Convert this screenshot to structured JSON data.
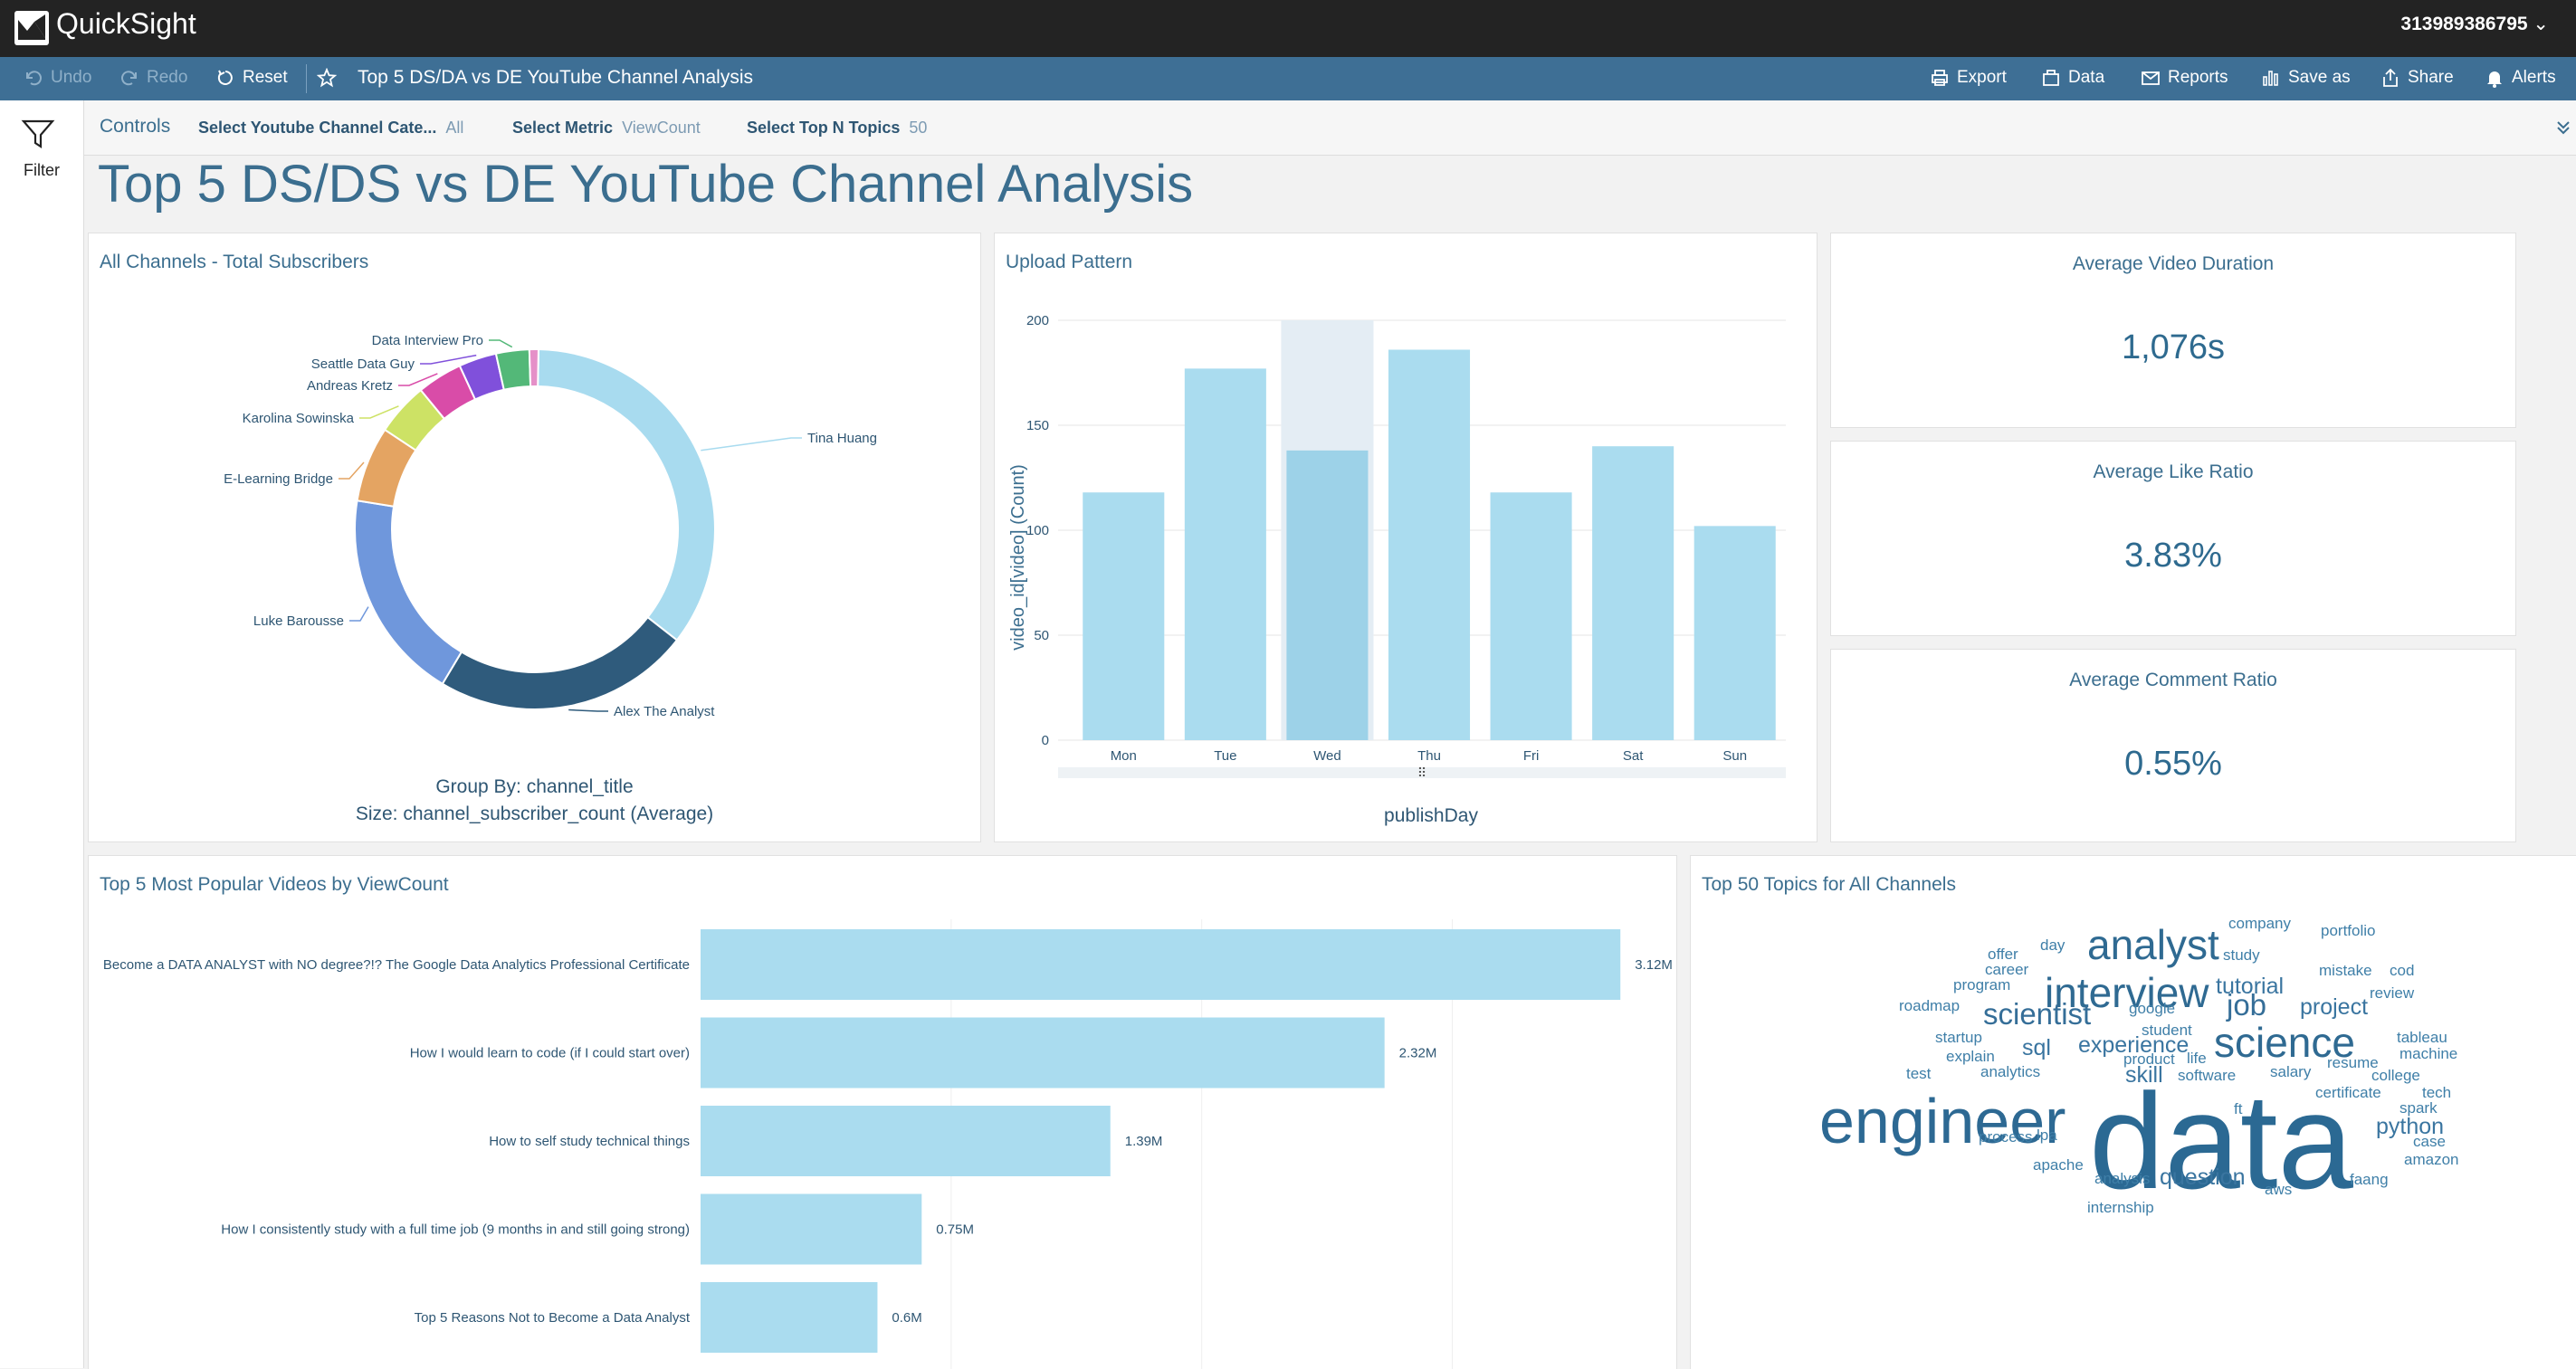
{
  "app": {
    "name": "QuickSight",
    "account": "313989386795"
  },
  "toolbar": {
    "undo": "Undo",
    "redo": "Redo",
    "reset": "Reset",
    "title": "Top 5 DS/DA vs DE YouTube Channel Analysis",
    "export": "Export",
    "data": "Data",
    "reports": "Reports",
    "save_as": "Save as",
    "share": "Share",
    "alerts": "Alerts"
  },
  "rail": {
    "filter": "Filter"
  },
  "controls": {
    "label": "Controls",
    "items": [
      {
        "label": "Select Youtube Channel Cate...",
        "value": "All"
      },
      {
        "label": "Select Metric",
        "value": "ViewCount"
      },
      {
        "label": "Select Top N Topics",
        "value": "50"
      }
    ]
  },
  "sheet_title": "Top 5 DS/DS vs DE YouTube Channel Analysis",
  "donut": {
    "title": "All Channels - Total Subscribers",
    "group_by": "Group By: channel_title",
    "size": "Size: channel_subscriber_count (Average)"
  },
  "upload": {
    "title": "Upload Pattern"
  },
  "kpis": [
    {
      "title": "Average Video Duration",
      "value": "1,076s"
    },
    {
      "title": "Average Like Ratio",
      "value": "3.83%"
    },
    {
      "title": "Average Comment Ratio",
      "value": "0.55%"
    }
  ],
  "topvideos": {
    "title": "Top 5 Most Popular Videos by ViewCount"
  },
  "wordcloud": {
    "title": "Top 50 Topics for All Channels",
    "words": [
      {
        "w": "company",
        "s": 1
      },
      {
        "w": "portfolio",
        "s": 1
      },
      {
        "w": "analyst",
        "s": 4
      },
      {
        "w": "day",
        "s": 1
      },
      {
        "w": "study",
        "s": 1
      },
      {
        "w": "offer",
        "s": 1
      },
      {
        "w": "mistake",
        "s": 1
      },
      {
        "w": "cod",
        "s": 1
      },
      {
        "w": "career",
        "s": 1
      },
      {
        "w": "interview",
        "s": 4
      },
      {
        "w": "tutorial",
        "s": 2
      },
      {
        "w": "program",
        "s": 1
      },
      {
        "w": "review",
        "s": 1
      },
      {
        "w": "roadmap",
        "s": 1
      },
      {
        "w": "scientist",
        "s": 3
      },
      {
        "w": "google",
        "s": 1
      },
      {
        "w": "job",
        "s": 3
      },
      {
        "w": "project",
        "s": 2
      },
      {
        "w": "student",
        "s": 1
      },
      {
        "w": "startup",
        "s": 1
      },
      {
        "w": "tableau",
        "s": 1
      },
      {
        "w": "experience",
        "s": 2
      },
      {
        "w": "science",
        "s": 4
      },
      {
        "w": "sql",
        "s": 2
      },
      {
        "w": "machine",
        "s": 1
      },
      {
        "w": "explain",
        "s": 1
      },
      {
        "w": "product",
        "s": 1
      },
      {
        "w": "life",
        "s": 1
      },
      {
        "w": "resume",
        "s": 1
      },
      {
        "w": "test",
        "s": 1
      },
      {
        "w": "analytics",
        "s": 1
      },
      {
        "w": "skill",
        "s": 2
      },
      {
        "w": "software",
        "s": 1
      },
      {
        "w": "salary",
        "s": 1
      },
      {
        "w": "college",
        "s": 1
      },
      {
        "w": "certificate",
        "s": 1
      },
      {
        "w": "tech",
        "s": 1
      },
      {
        "w": "engineer",
        "s": 5
      },
      {
        "w": "ft",
        "s": 1
      },
      {
        "w": "data",
        "s": 6
      },
      {
        "w": "spark",
        "s": 1
      },
      {
        "w": "python",
        "s": 2
      },
      {
        "w": "process",
        "s": 1
      },
      {
        "w": "lpa",
        "s": 1
      },
      {
        "w": "case",
        "s": 1
      },
      {
        "w": "amazon",
        "s": 1
      },
      {
        "w": "apache",
        "s": 1
      },
      {
        "w": "analysis",
        "s": 1
      },
      {
        "w": "question",
        "s": 2
      },
      {
        "w": "faang",
        "s": 1
      },
      {
        "w": "aws",
        "s": 1
      },
      {
        "w": "internship",
        "s": 1
      }
    ]
  },
  "chart_data": [
    {
      "type": "pie",
      "title": "All Channels - Total Subscribers",
      "categories": [
        "Tina Huang",
        "Alex The Analyst",
        "Luke Barousse",
        "E-Learning Bridge",
        "Karolina Sowinska",
        "Andreas Kretz",
        "Seattle Data Guy",
        "Data Interview Pro"
      ],
      "values": [
        26,
        17,
        14,
        5,
        3.5,
        3,
        2.5,
        2.2
      ],
      "extra_slice": 0.6,
      "colors": [
        "#a8dbef",
        "#2f5b7c",
        "#6f97dc",
        "#e4a462",
        "#cde265",
        "#d94ca8",
        "#8050db",
        "#53b878",
        "#e590c8",
        "#d2532f"
      ]
    },
    {
      "type": "bar",
      "title": "Upload Pattern",
      "categories": [
        "Mon",
        "Tue",
        "Wed",
        "Thu",
        "Fri",
        "Sat",
        "Sun"
      ],
      "values": [
        118,
        177,
        138,
        186,
        118,
        140,
        102
      ],
      "highlight": "Wed",
      "xlabel": "publishDay",
      "ylabel": "video_id[video] (Count)",
      "ylim": [
        0,
        200
      ],
      "yticks": [
        0,
        50,
        100,
        150,
        200
      ]
    },
    {
      "type": "bar",
      "orientation": "horizontal",
      "title": "Top 5 Most Popular Videos by ViewCount",
      "categories": [
        "Become a DATA ANALYST with NO degree?!? The Google Data Analytics Professional Certificate",
        "How I would learn to code (if I could start over)",
        "How to self study technical things",
        "How I consistently study with a full time job (9 months in and still going strong)",
        "Top 5 Reasons Not to Become a Data Analyst"
      ],
      "values": [
        3.12,
        2.32,
        1.39,
        0.75,
        0.6
      ],
      "labels": [
        "3.12M",
        "2.32M",
        "1.39M",
        "0.75M",
        "0.6M"
      ],
      "unit": "M"
    }
  ]
}
